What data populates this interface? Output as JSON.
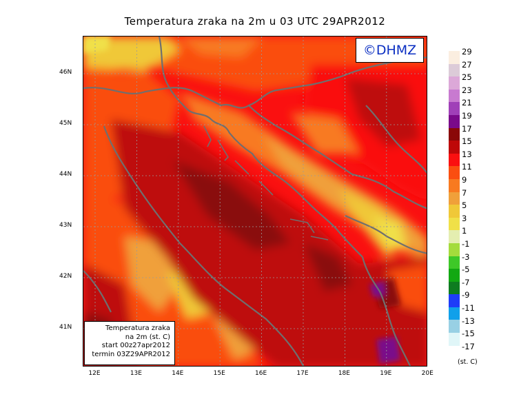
{
  "title": "Temperatura zraka na 2m u 03 UTC 29APR2012",
  "logo_text": "©DHMZ",
  "info_box": {
    "line1": "Temperatura zraka",
    "line2": "na 2m (st. C)",
    "line3": "start 00z27apr2012",
    "line4": "termin 03Z29APR2012"
  },
  "y_ticks": [
    "46N",
    "45N",
    "44N",
    "43N",
    "42N",
    "41N"
  ],
  "x_ticks": [
    "12E",
    "13E",
    "14E",
    "15E",
    "16E",
    "17E",
    "18E",
    "19E",
    "20E"
  ],
  "legend": {
    "unit": "(st. C)",
    "entries": [
      {
        "label": "29",
        "color": "#fbeee0"
      },
      {
        "label": "27",
        "color": "#dccbd8"
      },
      {
        "label": "25",
        "color": "#dca8d8"
      },
      {
        "label": "23",
        "color": "#c87ad0"
      },
      {
        "label": "21",
        "color": "#a040b8"
      },
      {
        "label": "19",
        "color": "#7a0a8a"
      },
      {
        "label": "17",
        "color": "#8a0808"
      },
      {
        "label": "15",
        "color": "#be0808"
      },
      {
        "label": "13",
        "color": "#fa1010"
      },
      {
        "label": "11",
        "color": "#fa4e10"
      },
      {
        "label": "9",
        "color": "#f87a20"
      },
      {
        "label": "7",
        "color": "#f0a03a"
      },
      {
        "label": "5",
        "color": "#f0c838"
      },
      {
        "label": "3",
        "color": "#f0e048"
      },
      {
        "label": "1",
        "color": "#e4eeb0"
      },
      {
        "label": "-1",
        "color": "#a4dc3c"
      },
      {
        "label": "-3",
        "color": "#3ec828"
      },
      {
        "label": "-5",
        "color": "#12a812"
      },
      {
        "label": "-7",
        "color": "#0e7c20"
      },
      {
        "label": "-9",
        "color": "#1e3cf8"
      },
      {
        "label": "-11",
        "color": "#10a0ea"
      },
      {
        "label": "-13",
        "color": "#98d0e4"
      },
      {
        "label": "-15",
        "color": "#e0f6f8"
      },
      {
        "label": "-17",
        "color": "#ffffff"
      }
    ]
  }
}
